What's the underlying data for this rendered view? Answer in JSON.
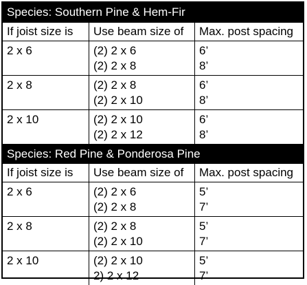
{
  "columns": [
    "If joist size is",
    "Use beam size of",
    "Max. post spacing"
  ],
  "sections": [
    {
      "title": "Species: Southern Pine & Hem-Fir",
      "rows": [
        {
          "joist": "2 x 6",
          "beams": [
            "(2) 2 x 6",
            "(2) 2 x 8"
          ],
          "spacing": [
            "6’",
            "8’"
          ]
        },
        {
          "joist": "2 x 8",
          "beams": [
            "(2) 2 x 8",
            "(2) 2 x 10"
          ],
          "spacing": [
            "6’",
            "8’"
          ]
        },
        {
          "joist": "2 x 10",
          "beams": [
            "(2) 2 x 10",
            "(2) 2 x 12"
          ],
          "spacing": [
            "6’",
            "8’"
          ]
        }
      ]
    },
    {
      "title": "Species: Red Pine & Ponderosa Pine",
      "rows": [
        {
          "joist": "2 x 6",
          "beams": [
            "(2) 2 x 6",
            "(2) 2 x 8"
          ],
          "spacing": [
            "5’",
            "7’"
          ]
        },
        {
          "joist": "2 x 8",
          "beams": [
            "(2) 2 x 8",
            "(2) 2 x 10"
          ],
          "spacing": [
            "5’",
            "7’"
          ]
        },
        {
          "joist": "2 x 10",
          "beams": [
            "(2) 2 x 10",
            "2) 2 x 12"
          ],
          "spacing": [
            "5’",
            "7’"
          ]
        }
      ]
    }
  ]
}
